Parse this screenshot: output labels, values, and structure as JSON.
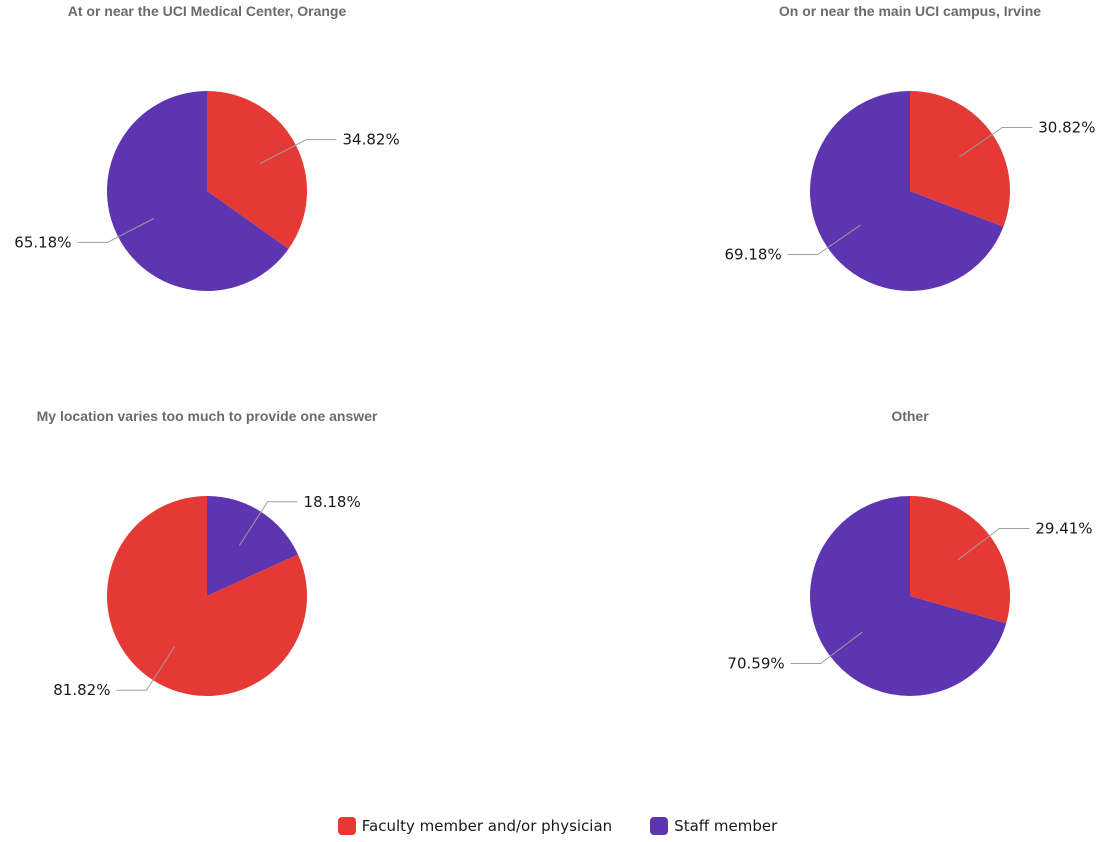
{
  "colors": {
    "faculty": "#e53935",
    "staff": "#5e35b1"
  },
  "legend": {
    "faculty_label": "Faculty member and/or physician",
    "staff_label": "Staff member"
  },
  "chart_data": [
    {
      "type": "pie",
      "title": "At or near the UCI Medical Center, Orange",
      "slices": [
        {
          "name": "Faculty member and/or physician",
          "value": 34.82,
          "label": "34.82%",
          "color": "#e53935"
        },
        {
          "name": "Staff member",
          "value": 65.18,
          "label": "65.18%",
          "color": "#5e35b1"
        }
      ]
    },
    {
      "type": "pie",
      "title": "On or near the main UCI campus, Irvine",
      "slices": [
        {
          "name": "Faculty member and/or physician",
          "value": 30.82,
          "label": "30.82%",
          "color": "#e53935"
        },
        {
          "name": "Staff member",
          "value": 69.18,
          "label": "69.18%",
          "color": "#5e35b1"
        }
      ]
    },
    {
      "type": "pie",
      "title": "My location varies too much to provide one answer",
      "slices": [
        {
          "name": "Staff member",
          "value": 18.18,
          "label": "18.18%",
          "color": "#5e35b1"
        },
        {
          "name": "Faculty member and/or physician",
          "value": 81.82,
          "label": "81.82%",
          "color": "#e53935"
        }
      ]
    },
    {
      "type": "pie",
      "title": "Other",
      "slices": [
        {
          "name": "Faculty member and/or physician",
          "value": 29.41,
          "label": "29.41%",
          "color": "#e53935"
        },
        {
          "name": "Staff member",
          "value": 70.59,
          "label": "70.59%",
          "color": "#5e35b1"
        }
      ]
    }
  ]
}
